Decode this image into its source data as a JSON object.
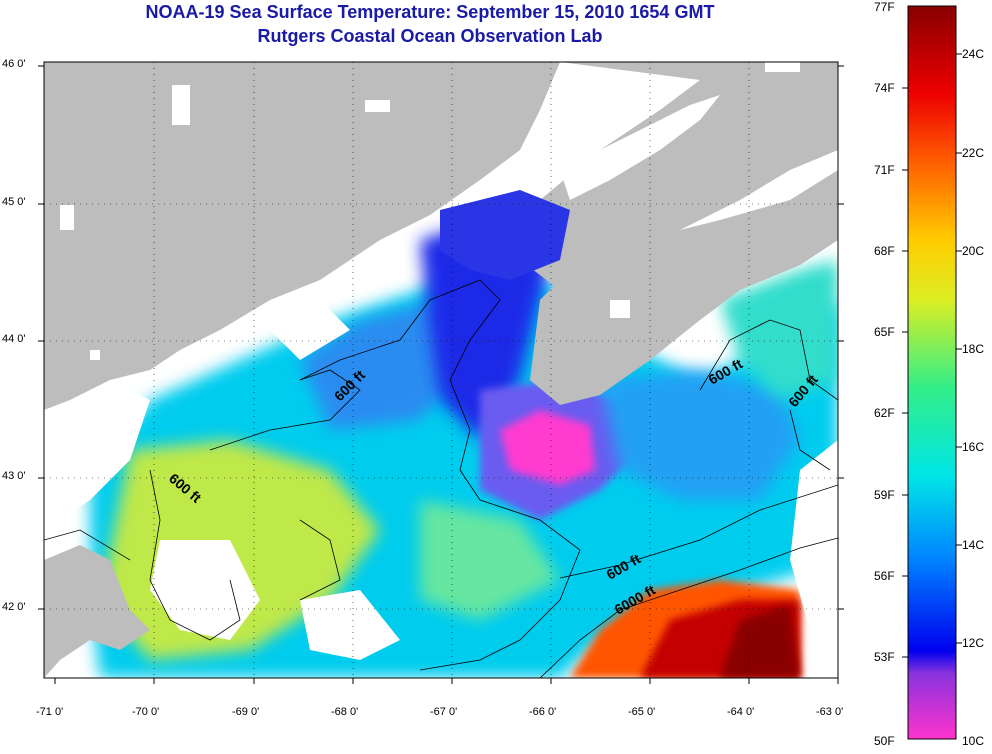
{
  "title": {
    "line1": "NOAA-19 Sea Surface Temperature:  September 15, 2010 1654 GMT",
    "line2": "Rutgers Coastal Ocean Observation Lab"
  },
  "axes": {
    "lat_labels": [
      "46 0'",
      "45 0'",
      "44 0'",
      "43 0'",
      "42 0'"
    ],
    "lon_labels": [
      "-71 0'",
      "-70 0'",
      "-69 0'",
      "-68 0'",
      "-67 0'",
      "-66 0'",
      "-65 0'",
      "-64 0'",
      "-63 0'"
    ]
  },
  "colorbar": {
    "f_labels": [
      "77F",
      "74F",
      "71F",
      "68F",
      "65F",
      "62F",
      "59F",
      "56F",
      "53F",
      "50F"
    ],
    "c_labels": [
      "24C",
      "22C",
      "20C",
      "18C",
      "16C",
      "14C",
      "12C",
      "10C"
    ],
    "colors": [
      "#ff33cc",
      "#8833dd",
      "#0000ee",
      "#0088ff",
      "#00e6e6",
      "#33ee88",
      "#ddee22",
      "#ffcc00",
      "#ff6600",
      "#ee0000",
      "#880000"
    ]
  },
  "contours": {
    "labels": [
      "600 ft",
      "600 ft",
      "600 ft",
      "600 ft",
      "600 ft",
      "6000 ft"
    ]
  },
  "map_colors": {
    "land": "#bdbdbd",
    "cloud": "#ffffff"
  }
}
